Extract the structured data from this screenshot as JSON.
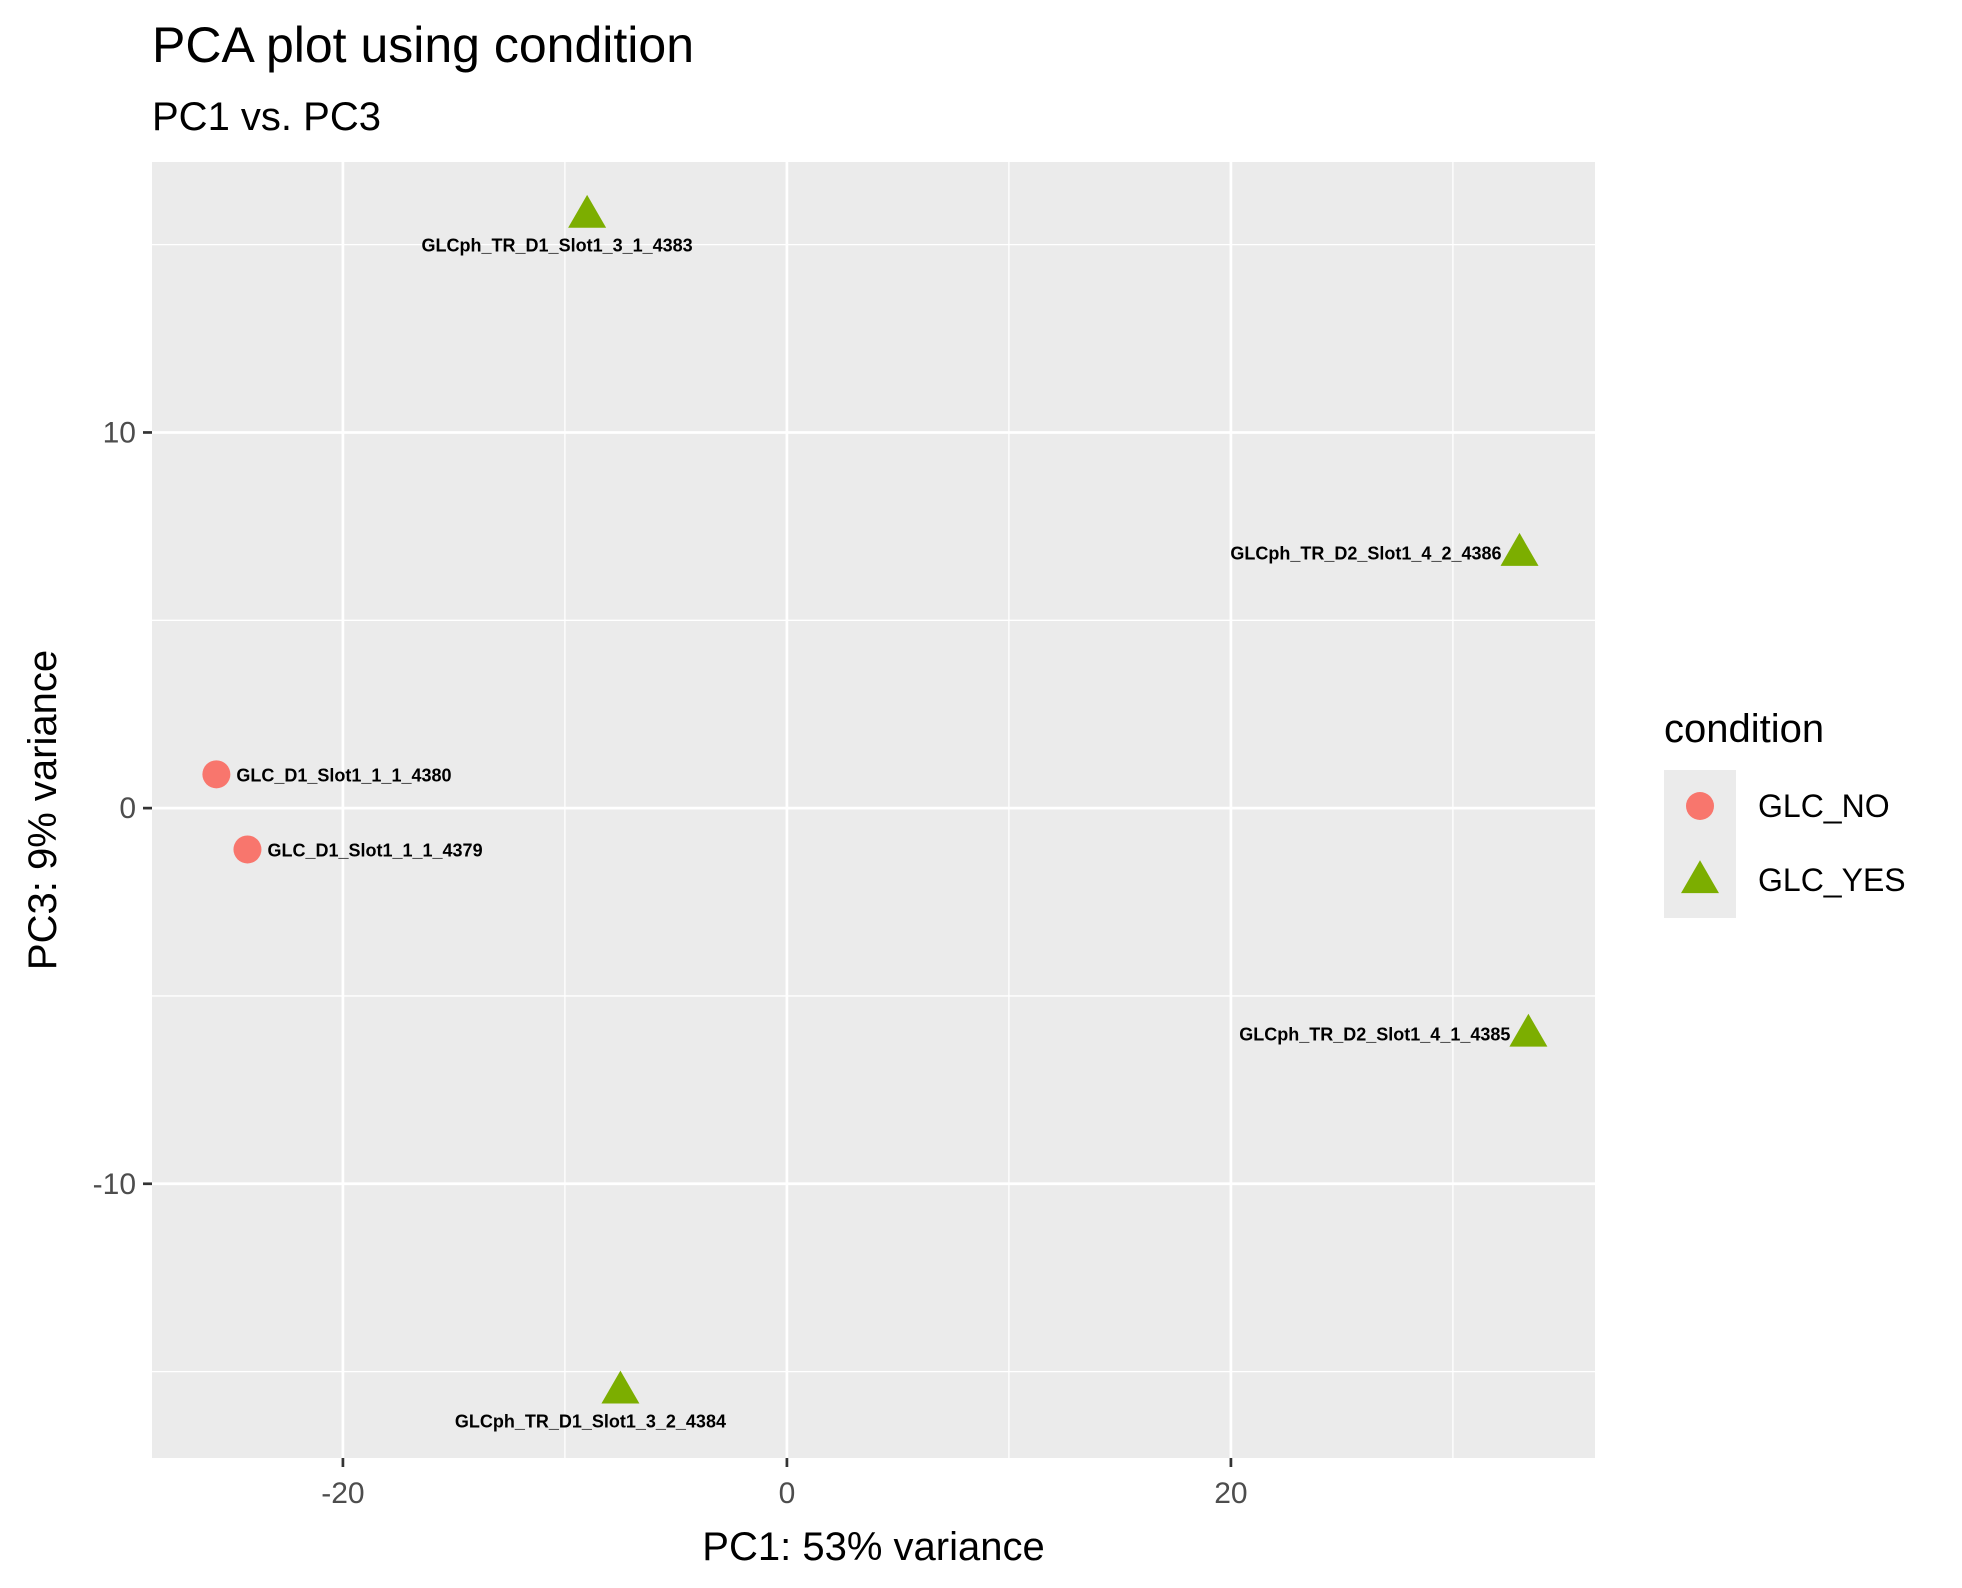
{
  "chart_data": {
    "type": "scatter",
    "title": "PCA plot using condition",
    "subtitle": "PC1 vs. PC3",
    "xlabel": "PC1: 53% variance",
    "ylabel": "PC3: 9% variance",
    "xlim": [
      -28.6,
      36.4
    ],
    "ylim": [
      -17.3,
      17.2
    ],
    "x_ticks": [
      -20,
      0,
      20
    ],
    "x_tick_labels": [
      "-20",
      "0",
      "20"
    ],
    "x_minor_ticks": [
      -30,
      -10,
      10,
      30
    ],
    "y_ticks": [
      -10,
      0,
      10
    ],
    "y_tick_labels": [
      "-10",
      "0",
      "10"
    ],
    "y_minor_ticks": [
      -15,
      -5,
      5,
      15
    ],
    "grid": true,
    "legend": {
      "title": "condition",
      "position": "right",
      "entries": [
        {
          "label": "GLC_NO",
          "shape": "circle",
          "color": "#F8766D"
        },
        {
          "label": "GLC_YES",
          "shape": "triangle",
          "color": "#7CAE00"
        }
      ]
    },
    "series": [
      {
        "name": "GLC_NO",
        "shape": "circle",
        "color": "#F8766D",
        "points": [
          {
            "x": -25.7,
            "y": 0.9,
            "label": "GLC_D1_Slot1_1_1_4380"
          },
          {
            "x": -24.3,
            "y": -1.1,
            "label": "GLC_D1_Slot1_1_1_4379"
          }
        ]
      },
      {
        "name": "GLC_YES",
        "shape": "triangle",
        "color": "#7CAE00",
        "points": [
          {
            "x": -9.0,
            "y": 15.8,
            "label": "GLCph_TR_D1_Slot1_3_1_4383"
          },
          {
            "x": 33.0,
            "y": 6.8,
            "label": "GLCph_TR_D2_Slot1_4_2_4386"
          },
          {
            "x": 33.4,
            "y": -6.0,
            "label": "GLCph_TR_D2_Slot1_4_1_4385"
          },
          {
            "x": -7.5,
            "y": -15.5,
            "label": "GLCph_TR_D1_Slot1_3_2_4384"
          }
        ]
      }
    ]
  }
}
